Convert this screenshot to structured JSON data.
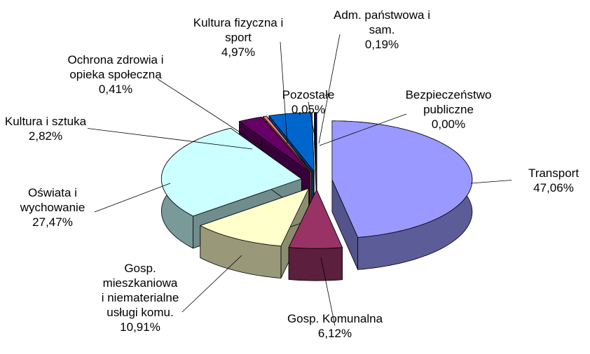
{
  "chart_data": {
    "type": "pie",
    "categories": [
      "Transport",
      "Gosp. Komunalna",
      "Gosp. mieszkaniowa i niematerialne usługi komu.",
      "Oświata i wychowanie",
      "Kultura i sztuka",
      "Ochrona zdrowia i opieka społeczna",
      "Kultura fizyczna i sport",
      "Pozostałe",
      "Adm. państwowa i sam.",
      "Bezpieczeństwo publiczne"
    ],
    "values": [
      47.06,
      6.12,
      10.91,
      27.47,
      2.82,
      0.41,
      4.97,
      0.05,
      0.19,
      0.0
    ],
    "value_labels": [
      "47,06%",
      "6,12%",
      "10,91%",
      "27,47%",
      "2,82%",
      "0,41%",
      "4,97%",
      "0,05%",
      "0,19%",
      "0,00%"
    ],
    "colors": [
      "#9999ff",
      "#993366",
      "#ffffcc",
      "#ccffff",
      "#660066",
      "#ff8080",
      "#0066cc",
      "#ccccff",
      "#000080",
      "#ff00ff"
    ]
  }
}
